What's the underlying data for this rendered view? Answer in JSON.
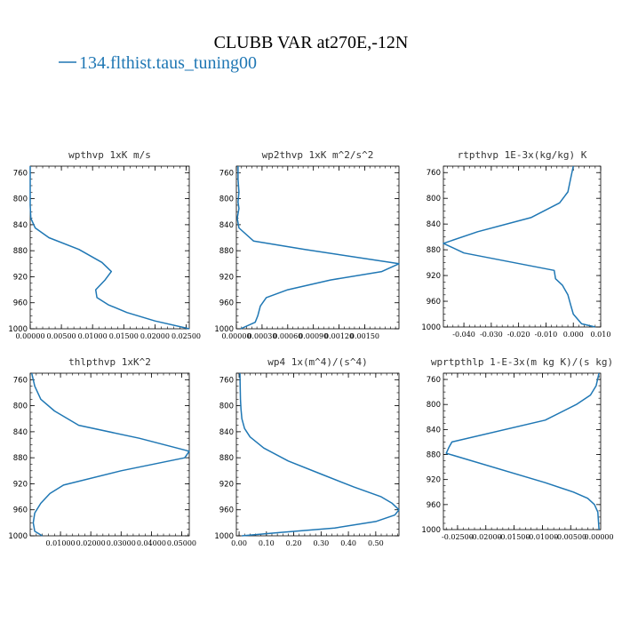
{
  "figure": {
    "title": "CLUBB VAR at270E,-12N",
    "legend_label": "134.flthist.taus_tuning00",
    "line_color": "#1f77b4"
  },
  "chart_data": [
    {
      "type": "line",
      "title": "wpthvp   1xK m/s",
      "xlim": [
        0,
        0.0255
      ],
      "ylim": [
        1000,
        750
      ],
      "xticks": [
        0,
        0.005,
        0.01,
        0.015,
        0.02,
        0.025
      ],
      "xticklabels": [
        "0.00000",
        "0.00500",
        "0.01000",
        "0.01500",
        "0.02000",
        "0.02500"
      ],
      "yticks": [
        760,
        800,
        840,
        880,
        920,
        960,
        1000
      ],
      "series": [
        {
          "x": [
            0,
            0,
            0,
            0.0001,
            0.0008,
            0.003,
            0.0078,
            0.0115,
            0.013,
            0.012,
            0.0105,
            0.0107,
            0.0125,
            0.0155,
            0.02,
            0.0255
          ],
          "y": [
            750,
            780,
            810,
            830,
            845,
            860,
            878,
            898,
            912,
            925,
            940,
            952,
            963,
            975,
            988,
            1000
          ]
        }
      ]
    },
    {
      "type": "line",
      "title": "wp2thvp   1xK m^2/s^2",
      "xlim": [
        0,
        0.0019
      ],
      "ylim": [
        1000,
        750
      ],
      "xticks": [
        0,
        0.0003,
        0.0006,
        0.0009,
        0.0012,
        0.0015
      ],
      "xticklabels": [
        "0.00000",
        "0.00030",
        "0.00060",
        "0.00090",
        "0.00120",
        "0.00150"
      ],
      "yticks": [
        760,
        800,
        840,
        880,
        920,
        960,
        1000
      ],
      "series": [
        {
          "x": [
            2e-05,
            2e-05,
            3e-05,
            2e-05,
            3e-05,
            1e-05,
            3e-05,
            0.0002,
            0.0008,
            0.0019,
            0.0017,
            0.0011,
            0.0006,
            0.00035,
            0.00028,
            0.00025,
            0.00022,
            5e-05
          ],
          "y": [
            750,
            770,
            790,
            805,
            815,
            830,
            845,
            865,
            878,
            900,
            912,
            925,
            940,
            952,
            965,
            980,
            990,
            1000
          ]
        }
      ]
    },
    {
      "type": "line",
      "title": "rtpthvp   1E-3x(kg/kg) K",
      "xlim": [
        -0.0475,
        0.01
      ],
      "ylim": [
        1000,
        750
      ],
      "xticks": [
        -0.04,
        -0.03,
        -0.02,
        -0.01,
        0,
        0.01
      ],
      "xticklabels": [
        "-0.040",
        "-0.030",
        "-0.020",
        "-0.010",
        "0.000",
        "0.010"
      ],
      "yticks": [
        760,
        800,
        840,
        880,
        920,
        960,
        1000
      ],
      "series": [
        {
          "x": [
            0,
            -0.001,
            -0.002,
            -0.005,
            -0.0155,
            -0.035,
            -0.0475,
            -0.04,
            -0.007,
            -0.0065,
            -0.004,
            -0.002,
            -0.001,
            0,
            0.003,
            0.008
          ],
          "y": [
            750,
            770,
            790,
            807,
            830,
            852,
            870,
            885,
            912,
            925,
            935,
            950,
            965,
            980,
            995,
            1000
          ]
        }
      ]
    },
    {
      "type": "line",
      "title": "thlpthvp   1xK^2",
      "xlim": [
        0,
        0.0525
      ],
      "ylim": [
        1000,
        750
      ],
      "xticks": [
        0.01,
        0.02,
        0.03,
        0.04,
        0.05
      ],
      "xticklabels": [
        "0.01000",
        "0.02000",
        "0.03000",
        "0.04000",
        "0.05000"
      ],
      "yticks": [
        760,
        800,
        840,
        880,
        920,
        960,
        1000
      ],
      "series": [
        {
          "x": [
            0.0005,
            0.0015,
            0.0035,
            0.008,
            0.016,
            0.036,
            0.0525,
            0.051,
            0.03,
            0.011,
            0.0065,
            0.0035,
            0.0015,
            0.001,
            0.0015,
            0.004
          ],
          "y": [
            750,
            770,
            790,
            808,
            830,
            850,
            870,
            880,
            900,
            922,
            935,
            950,
            965,
            980,
            993,
            1000
          ]
        }
      ]
    },
    {
      "type": "line",
      "title": "wp4   1x(m^4)/(s^4)",
      "xlim": [
        -0.01,
        0.585
      ],
      "ylim": [
        1000,
        750
      ],
      "xticks": [
        0,
        0.1,
        0.2,
        0.3,
        0.4,
        0.5
      ],
      "xticklabels": [
        "0.00",
        "0.10",
        "0.20",
        "0.30",
        "0.40",
        "0.50"
      ],
      "yticks": [
        760,
        800,
        840,
        880,
        920,
        960,
        1000
      ],
      "series": [
        {
          "x": [
            0.003,
            0.004,
            0.005,
            0.007,
            0.01,
            0.02,
            0.04,
            0.09,
            0.18,
            0.3,
            0.42,
            0.52,
            0.56,
            0.585,
            0.57,
            0.5,
            0.35,
            0.15,
            0.01
          ],
          "y": [
            750,
            770,
            790,
            805,
            820,
            835,
            848,
            865,
            885,
            905,
            925,
            940,
            950,
            960,
            968,
            978,
            988,
            995,
            1000
          ]
        }
      ]
    },
    {
      "type": "line",
      "title": "wprtpthlp   1-E-3x(m kg K)/(s kg)",
      "xlim": [
        -0.0275,
        0.0003
      ],
      "ylim": [
        1000,
        750
      ],
      "xticks": [
        -0.025,
        -0.02,
        -0.015,
        -0.01,
        -0.005,
        0
      ],
      "xticklabels": [
        "-0.02500",
        "-0.02000",
        "-0.01500",
        "-0.01000",
        "-0.00500",
        "0.00000"
      ],
      "yticks": [
        760,
        800,
        840,
        880,
        920,
        960,
        1000
      ],
      "series": [
        {
          "x": [
            0,
            -0.0005,
            -0.0015,
            -0.004,
            -0.0095,
            -0.026,
            -0.0265,
            -0.027,
            -0.0095,
            -0.0045,
            -0.002,
            -0.0008,
            -0.0002,
            0
          ],
          "y": [
            750,
            770,
            785,
            800,
            825,
            860,
            868,
            878,
            925,
            940,
            950,
            960,
            972,
            1000
          ]
        }
      ]
    }
  ]
}
